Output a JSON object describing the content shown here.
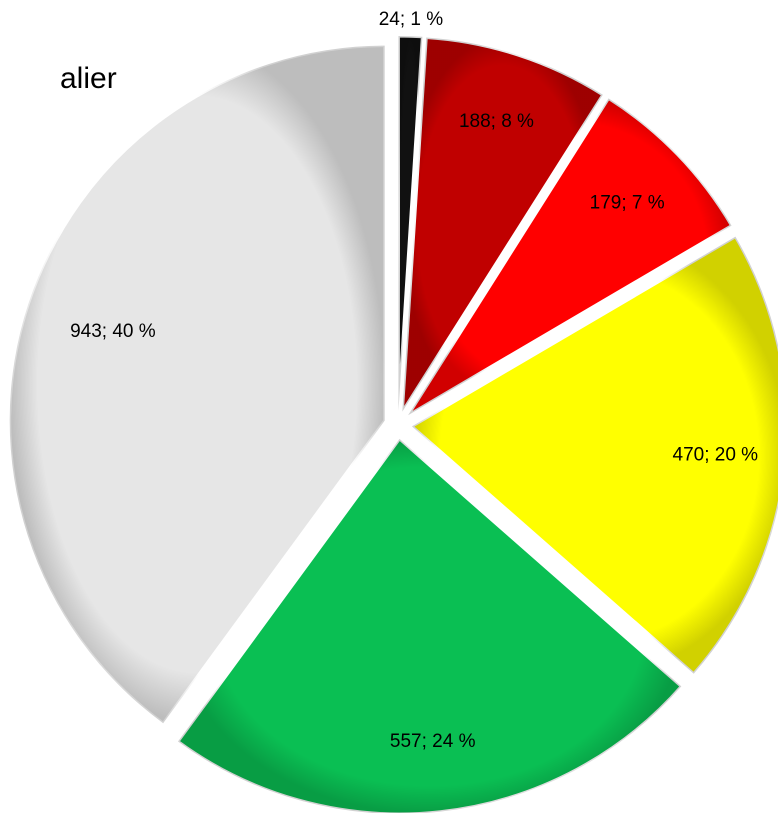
{
  "chart_data": {
    "type": "pie",
    "title": "alier",
    "categories": [
      null,
      null,
      null,
      null,
      null,
      null
    ],
    "values": [
      24,
      188,
      179,
      470,
      557,
      943
    ],
    "value_labels": [
      "24; 1 %",
      "188; 8 %",
      "179; 7 %",
      "470; 20 %",
      "557; 24 %",
      "943; 40 %"
    ],
    "colors": [
      "#111111",
      "#c00000",
      "#ff0000",
      "#ffff00",
      "#0abf53",
      "#e6e6e6"
    ]
  }
}
